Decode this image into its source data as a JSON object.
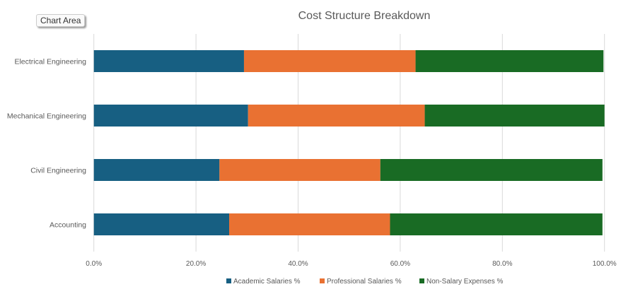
{
  "tooltip": "Chart Area",
  "chart_data": {
    "type": "bar",
    "orientation": "horizontal",
    "stacked": "percent",
    "title": "Cost Structure Breakdown",
    "xlabel": "",
    "ylabel": "",
    "xlim": [
      0,
      100
    ],
    "x_ticks": [
      "0.0%",
      "20.0%",
      "40.0%",
      "60.0%",
      "80.0%",
      "100.0%"
    ],
    "categories": [
      "Electrical Engineering",
      "Mechanical Engineering",
      "Civil Engineering",
      "Accounting"
    ],
    "series": [
      {
        "name": "Academic Salaries %",
        "color": "#175f82",
        "values": [
          29.4,
          30.2,
          24.6,
          26.5
        ]
      },
      {
        "name": "Professional Salaries %",
        "color": "#e97132",
        "values": [
          33.6,
          34.6,
          31.5,
          31.5
        ]
      },
      {
        "name": "Non-Salary Expenses %",
        "color": "#196b24",
        "values": [
          36.8,
          35.2,
          43.5,
          41.6
        ]
      }
    ],
    "grid": "vertical",
    "legend": "bottom"
  }
}
